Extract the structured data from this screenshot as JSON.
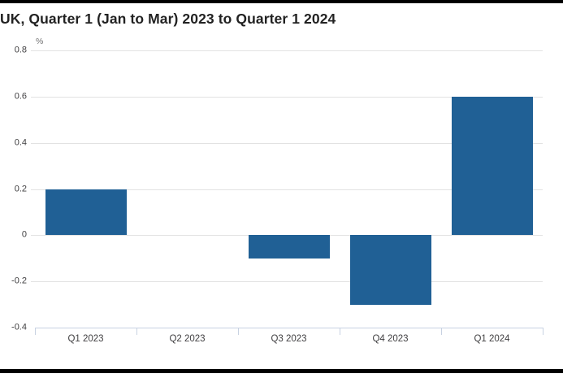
{
  "page": {
    "title": "UK, Quarter 1 (Jan to Mar) 2023 to Quarter 1 2024"
  },
  "chart_data": {
    "type": "bar",
    "title": "UK, Quarter 1 (Jan to Mar) 2023 to Quarter 1 2024",
    "unit_label": "%",
    "categories": [
      "Q1 2023",
      "Q2 2023",
      "Q3 2023",
      "Q4 2023",
      "Q1 2024"
    ],
    "values": [
      0.2,
      0.0,
      -0.1,
      -0.3,
      0.6
    ],
    "xlabel": "",
    "ylabel": "%",
    "ylim": [
      -0.4,
      0.8
    ],
    "yticks": [
      0.8,
      0.6,
      0.4,
      0.2,
      0,
      -0.2,
      -0.4
    ],
    "grid": true,
    "legend_position": "none",
    "colors": {
      "bar": "#206095",
      "gridline": "#e2e2e2",
      "axis_line": "#c8d2e2",
      "tick_label": "#414042",
      "unit_label": "#707071",
      "title": "#222222",
      "divider": "#000000"
    }
  }
}
